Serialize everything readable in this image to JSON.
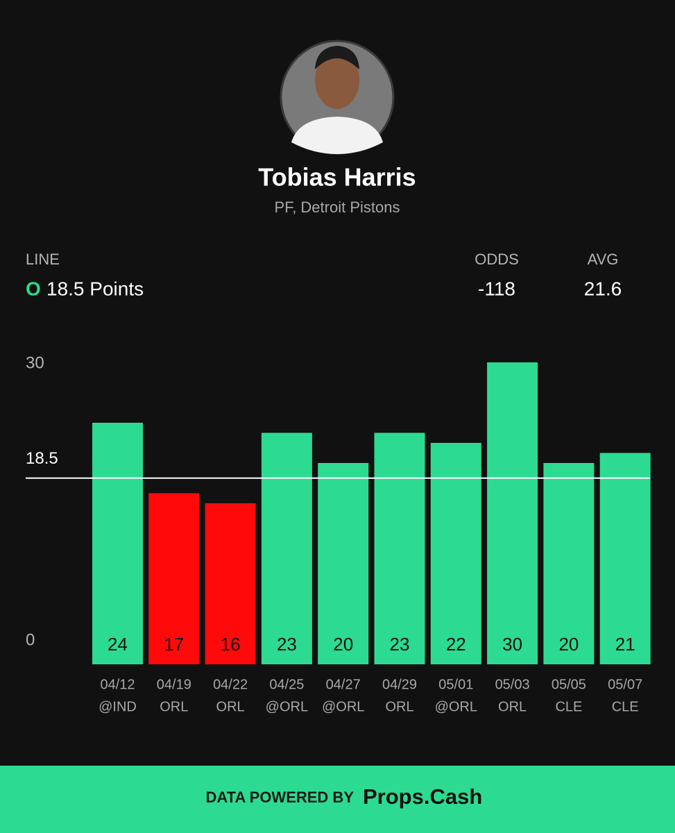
{
  "player": {
    "name": "Tobias Harris",
    "position": "PF, Detroit Pistons"
  },
  "line": {
    "label": "LINE",
    "side": "O",
    "text": "18.5 Points"
  },
  "odds": {
    "label": "ODDS",
    "value": "-118"
  },
  "avg": {
    "label": "AVG",
    "value": "21.6"
  },
  "chart_data": {
    "type": "bar",
    "categories": [
      "04/12",
      "04/19",
      "04/22",
      "04/25",
      "04/27",
      "04/29",
      "05/01",
      "05/03",
      "05/05",
      "05/07"
    ],
    "opponents": [
      "@IND",
      "ORL",
      "ORL",
      "@ORL",
      "@ORL",
      "ORL",
      "@ORL",
      "ORL",
      "CLE",
      "CLE"
    ],
    "values": [
      24,
      17,
      16,
      23,
      20,
      23,
      22,
      30,
      20,
      21
    ],
    "threshold": 18.5,
    "over_color": "#2cdb91",
    "under_color": "#ff0a0a",
    "ylim": [
      0,
      30
    ],
    "yticks": [
      0,
      30
    ]
  },
  "footer": {
    "prefix": "DATA POWERED BY",
    "brand": "Props.Cash"
  }
}
